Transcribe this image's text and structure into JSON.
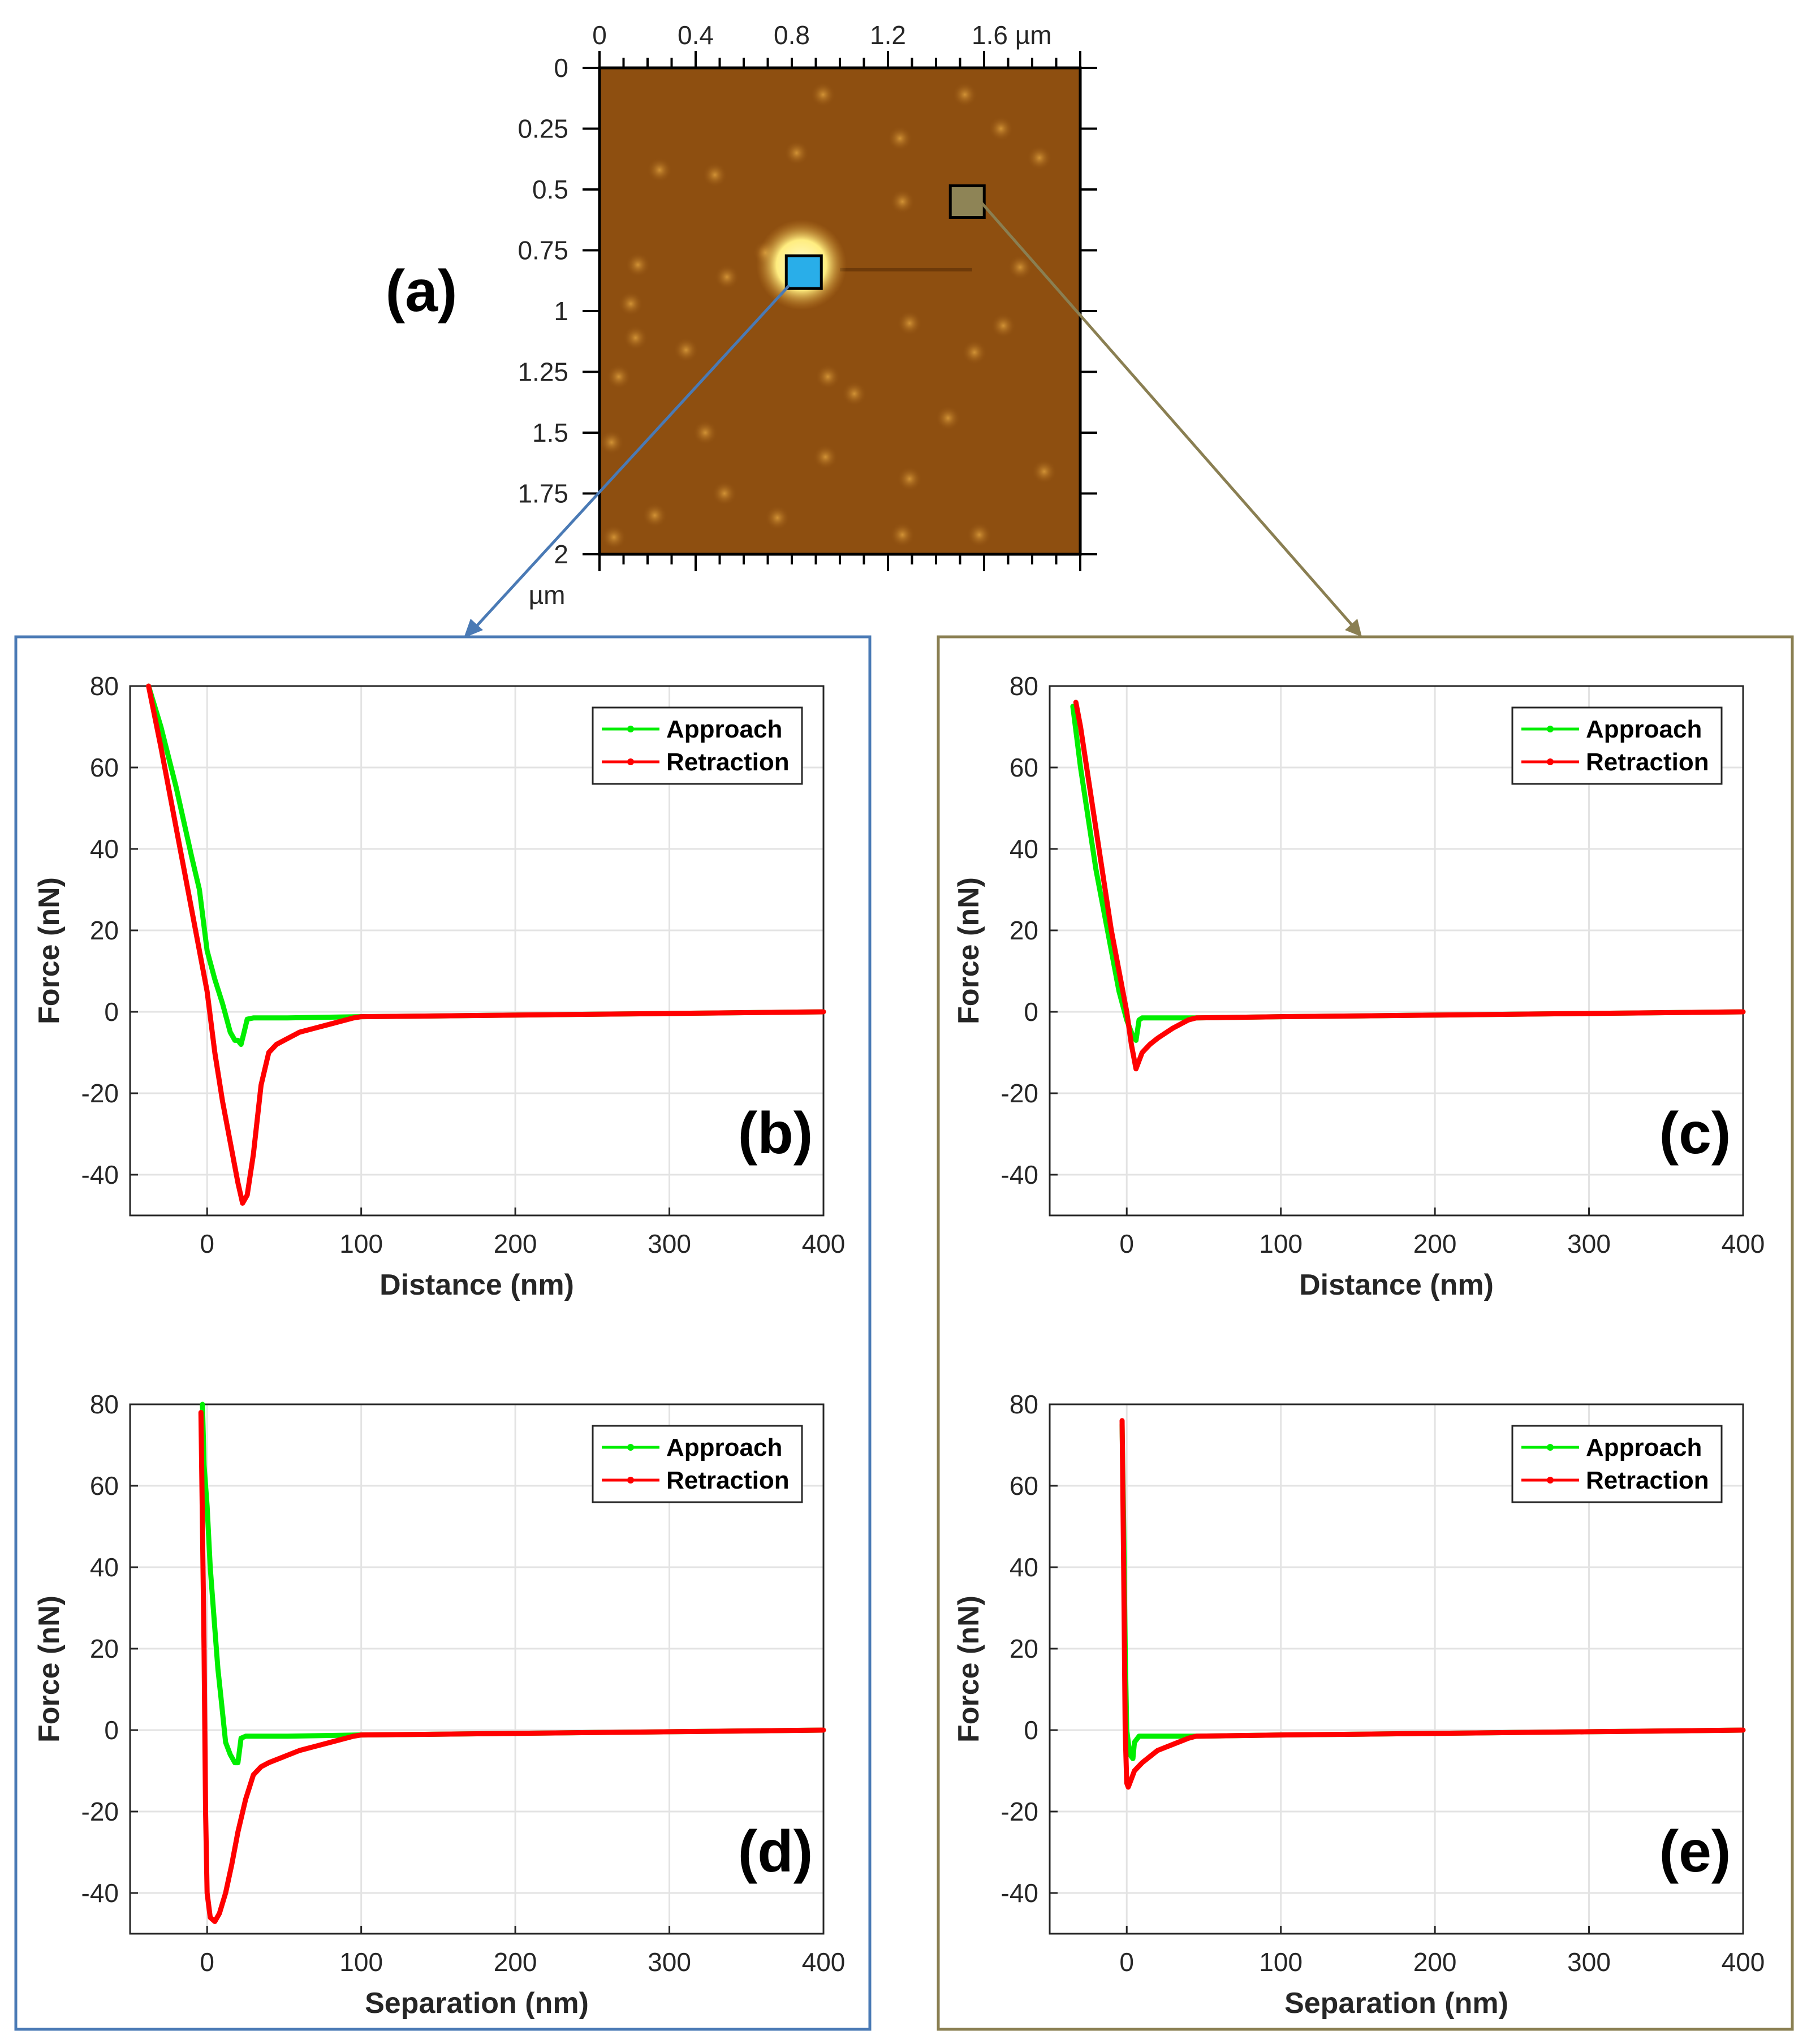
{
  "panel_a": {
    "label": "(a)",
    "x_ticks": [
      "0",
      "0.4",
      "0.8",
      "1.2",
      "1.6 µm"
    ],
    "x_tick_values": [
      0,
      0.4,
      0.8,
      1.2,
      1.6
    ],
    "y_ticks": [
      "0",
      "0.25",
      "0.5",
      "0.75",
      "1",
      "1.25",
      "1.5",
      "1.75",
      "2"
    ],
    "y_tick_values": [
      0,
      0.25,
      0.5,
      0.75,
      1,
      1.25,
      1.5,
      1.75,
      2
    ],
    "y_unit": "µm",
    "xlim": [
      0,
      2
    ],
    "ylim": [
      0,
      2
    ],
    "image_color": "#8e4f10",
    "particle_color": "#c48228",
    "bright_feature_color": "#fff7b0",
    "particle_centers_um": [
      [
        0.93,
        0.11
      ],
      [
        1.52,
        0.11
      ],
      [
        0.25,
        0.42
      ],
      [
        0.48,
        0.44
      ],
      [
        0.82,
        0.35
      ],
      [
        1.25,
        0.29
      ],
      [
        1.67,
        0.25
      ],
      [
        1.83,
        0.37
      ],
      [
        0.69,
        0.76
      ],
      [
        1.26,
        0.55
      ],
      [
        0.53,
        0.86
      ],
      [
        0.16,
        0.81
      ],
      [
        0.13,
        0.97
      ],
      [
        1.29,
        1.05
      ],
      [
        1.75,
        0.82
      ],
      [
        0.36,
        1.16
      ],
      [
        0.15,
        1.11
      ],
      [
        1.68,
        1.06
      ],
      [
        0.95,
        1.27
      ],
      [
        1.56,
        1.17
      ],
      [
        0.08,
        1.27
      ],
      [
        1.06,
        1.34
      ],
      [
        0.44,
        1.5
      ],
      [
        0.05,
        1.54
      ],
      [
        0.94,
        1.6
      ],
      [
        1.45,
        1.44
      ],
      [
        1.85,
        1.66
      ],
      [
        0.52,
        1.75
      ],
      [
        1.29,
        1.69
      ],
      [
        0.74,
        1.85
      ],
      [
        1.26,
        1.92
      ],
      [
        1.58,
        1.92
      ],
      [
        0.23,
        1.84
      ],
      [
        0.06,
        1.93
      ]
    ],
    "bright_feature_center_um": [
      0.84,
      0.81
    ],
    "marker_blue": {
      "center_um": [
        0.85,
        0.84
      ],
      "color": "#29aee9"
    },
    "marker_olive": {
      "center_um": [
        1.53,
        0.55
      ],
      "color": "#8e8456"
    }
  },
  "panels": [
    {
      "id": "b",
      "label": "(b)",
      "xlabel": "Distance (nm)",
      "ylabel": "Force (nN)",
      "frame_color": "#4a7ab5"
    },
    {
      "id": "c",
      "label": "(c)",
      "xlabel": "Distance (nm)",
      "ylabel": "Force (nN)",
      "frame_color": "#8a7f52"
    },
    {
      "id": "d",
      "label": "(d)",
      "xlabel": "Separation (nm)",
      "ylabel": "Force (nN)",
      "frame_color": "#4a7ab5"
    },
    {
      "id": "e",
      "label": "(e)",
      "xlabel": "Separation (nm)",
      "ylabel": "Force (nN)",
      "frame_color": "#8a7f52"
    }
  ],
  "legend": {
    "approach_label": "Approach",
    "retraction_label": "Retraction",
    "approach_color": "#00ee00",
    "retraction_color": "#ff0000"
  },
  "chart_data": [
    {
      "id": "b",
      "type": "line",
      "xlabel": "Distance (nm)",
      "ylabel": "Force (nN)",
      "xlim": [
        -50,
        400
      ],
      "ylim": [
        -50,
        80
      ],
      "x_ticks": [
        0,
        100,
        200,
        300,
        400
      ],
      "y_ticks": [
        80,
        60,
        40,
        20,
        0,
        -20,
        -40
      ],
      "grid": true,
      "legend_position": "top-right",
      "series": [
        {
          "name": "Approach",
          "x": [
            -38,
            -30,
            -20,
            -10,
            -5,
            0,
            5,
            10,
            15,
            18,
            20,
            22,
            24,
            26,
            30,
            50,
            100,
            200,
            300,
            400
          ],
          "y": [
            80,
            70,
            55,
            38,
            30,
            15,
            8,
            2,
            -5,
            -7,
            -7,
            -8,
            -5,
            -1.8,
            -1.5,
            -1.5,
            -1.2,
            -0.8,
            -0.4,
            0
          ]
        },
        {
          "name": "Retraction",
          "x": [
            -38,
            -30,
            -20,
            -10,
            0,
            5,
            10,
            15,
            20,
            23,
            26,
            30,
            35,
            40,
            45,
            50,
            60,
            70,
            80,
            95,
            100,
            200,
            300,
            400
          ],
          "y": [
            80,
            65,
            45,
            25,
            5,
            -10,
            -22,
            -32,
            -42,
            -47,
            -45,
            -35,
            -18,
            -10,
            -8,
            -7,
            -5,
            -4,
            -3,
            -1.5,
            -1.2,
            -0.8,
            -0.4,
            0
          ]
        }
      ]
    },
    {
      "id": "c",
      "type": "line",
      "xlabel": "Distance (nm)",
      "ylabel": "Force (nN)",
      "xlim": [
        -50,
        400
      ],
      "ylim": [
        -50,
        80
      ],
      "x_ticks": [
        0,
        100,
        200,
        300,
        400
      ],
      "y_ticks": [
        80,
        60,
        40,
        20,
        0,
        -20,
        -40
      ],
      "grid": true,
      "legend_position": "top-right",
      "series": [
        {
          "name": "Approach",
          "x": [
            -35,
            -30,
            -20,
            -10,
            -5,
            0,
            4,
            6,
            8,
            10,
            20,
            40,
            45,
            100,
            200,
            300,
            400
          ],
          "y": [
            75,
            60,
            35,
            15,
            5,
            -2,
            -6,
            -7,
            -2,
            -1.5,
            -1.5,
            -1.5,
            -1.5,
            -1.2,
            -0.8,
            -0.4,
            0
          ]
        },
        {
          "name": "Retraction",
          "x": [
            -33,
            -30,
            -20,
            -10,
            0,
            3,
            6,
            8,
            10,
            15,
            20,
            30,
            40,
            45,
            100,
            200,
            300,
            400
          ],
          "y": [
            76,
            70,
            45,
            20,
            0,
            -8,
            -14,
            -12,
            -10,
            -8,
            -6.5,
            -4,
            -2,
            -1.5,
            -1.2,
            -0.8,
            -0.4,
            0
          ]
        }
      ]
    },
    {
      "id": "d",
      "type": "line",
      "xlabel": "Separation (nm)",
      "ylabel": "Force (nN)",
      "xlim": [
        -50,
        400
      ],
      "ylim": [
        -50,
        80
      ],
      "x_ticks": [
        0,
        100,
        200,
        300,
        400
      ],
      "y_ticks": [
        80,
        60,
        40,
        20,
        0,
        -20,
        -40
      ],
      "grid": true,
      "legend_position": "top-right",
      "series": [
        {
          "name": "Approach",
          "x": [
            -3,
            -2,
            0,
            2,
            4,
            5,
            7,
            9,
            12,
            15,
            18,
            20,
            22,
            25,
            30,
            50,
            100,
            200,
            300,
            400
          ],
          "y": [
            80,
            65,
            55,
            40,
            30,
            25,
            15,
            8,
            -3,
            -6,
            -8,
            -8,
            -2,
            -1.5,
            -1.5,
            -1.5,
            -1.2,
            -0.8,
            -0.4,
            0
          ]
        },
        {
          "name": "Retraction",
          "x": [
            -4,
            -3,
            -2,
            -1,
            0,
            2,
            5,
            8,
            12,
            16,
            20,
            25,
            30,
            35,
            40,
            50,
            60,
            70,
            80,
            95,
            100,
            200,
            300,
            400
          ],
          "y": [
            78,
            50,
            20,
            -20,
            -40,
            -46,
            -47,
            -45,
            -40,
            -33,
            -25,
            -17,
            -11,
            -9,
            -8,
            -6.5,
            -5,
            -4,
            -3,
            -1.5,
            -1.2,
            -0.8,
            -0.4,
            0
          ]
        }
      ]
    },
    {
      "id": "e",
      "type": "line",
      "xlabel": "Separation (nm)",
      "ylabel": "Force (nN)",
      "xlim": [
        -50,
        400
      ],
      "ylim": [
        -50,
        80
      ],
      "x_ticks": [
        0,
        100,
        200,
        300,
        400
      ],
      "y_ticks": [
        80,
        60,
        40,
        20,
        0,
        -20,
        -40
      ],
      "grid": true,
      "legend_position": "top-right",
      "series": [
        {
          "name": "Approach",
          "x": [
            -3,
            -2,
            -1,
            0,
            2,
            4,
            5,
            8,
            10,
            20,
            40,
            45,
            100,
            200,
            300,
            400
          ],
          "y": [
            75,
            50,
            20,
            0,
            -6,
            -7,
            -3,
            -1.5,
            -1.5,
            -1.5,
            -1.5,
            -1.5,
            -1.2,
            -0.8,
            -0.4,
            0
          ]
        },
        {
          "name": "Retraction",
          "x": [
            -3,
            -2,
            -1,
            0,
            1,
            3,
            5,
            10,
            15,
            20,
            30,
            40,
            45,
            100,
            200,
            300,
            400
          ],
          "y": [
            76,
            40,
            0,
            -13,
            -14,
            -12,
            -10,
            -8,
            -6.5,
            -5,
            -3.5,
            -2,
            -1.5,
            -1.2,
            -0.8,
            -0.4,
            0
          ]
        }
      ]
    }
  ]
}
